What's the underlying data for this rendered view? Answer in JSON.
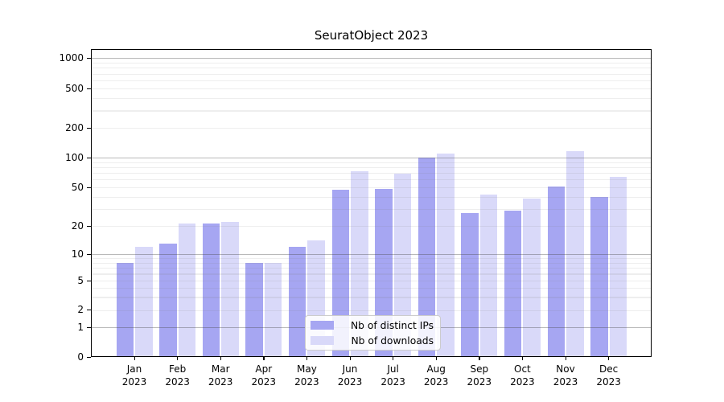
{
  "chart_data": {
    "type": "bar",
    "title": "SeuratObject 2023",
    "categories": [
      "Jan 2023",
      "Feb 2023",
      "Mar 2023",
      "Apr 2023",
      "May 2023",
      "Jun 2023",
      "Jul 2023",
      "Aug 2023",
      "Sep 2023",
      "Oct 2023",
      "Nov 2023",
      "Dec 2023"
    ],
    "x_tick_months": [
      "Jan",
      "Feb",
      "Mar",
      "Apr",
      "May",
      "Jun",
      "Jul",
      "Aug",
      "Sep",
      "Oct",
      "Nov",
      "Dec"
    ],
    "x_tick_year": "2023",
    "series": [
      {
        "name": "Nb of distinct IPs",
        "color": "#a6a6f2",
        "values": [
          8,
          13,
          21,
          8,
          12,
          47,
          48,
          100,
          27,
          29,
          51,
          40
        ]
      },
      {
        "name": "Nb of downloads",
        "color": "#d9d9f9",
        "values": [
          12,
          21,
          22,
          8,
          14,
          73,
          69,
          110,
          42,
          38,
          117,
          64
        ]
      }
    ],
    "y_ticks": [
      0,
      1,
      2,
      5,
      10,
      20,
      50,
      100,
      200,
      500,
      1000
    ],
    "y_scale": "log",
    "ylim": [
      0,
      1250
    ],
    "xlabel": "",
    "ylabel": "",
    "grid": "horizontal, major and minor log lines",
    "legend_position": "lower center"
  },
  "colors": {
    "bar_distinct_ips": "#a6a6f2",
    "bar_downloads": "#d9d9f9",
    "axis": "#000000",
    "background": "#ffffff"
  }
}
